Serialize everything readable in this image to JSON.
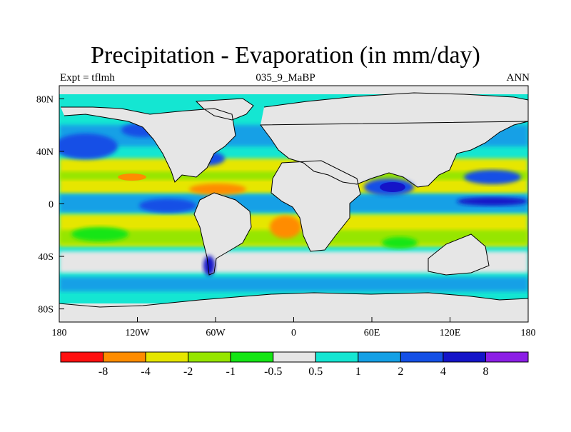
{
  "title": "Precipitation - Evaporation (in mm/day)",
  "subtitle_left": "Expt = tflmh",
  "subtitle_center": "035_9_MaBP",
  "subtitle_right": "ANN",
  "map": {
    "x_ticks": [
      "180",
      "120W",
      "60W",
      "0",
      "60E",
      "120E",
      "180"
    ],
    "y_ticks": [
      "80N",
      "40N",
      "0",
      "40S",
      "80S"
    ]
  },
  "colorbar": {
    "colors": [
      "#ff1010",
      "#ff8c00",
      "#e6e600",
      "#96e600",
      "#14e614",
      "#e6e6e6",
      "#14e6d2",
      "#14a0e6",
      "#1450e6",
      "#1414c8",
      "#8c1ee6"
    ],
    "labels": [
      "-8",
      "-4",
      "-2",
      "-1",
      "-0.5",
      "0.5",
      "1",
      "2",
      "4",
      "8"
    ]
  }
}
